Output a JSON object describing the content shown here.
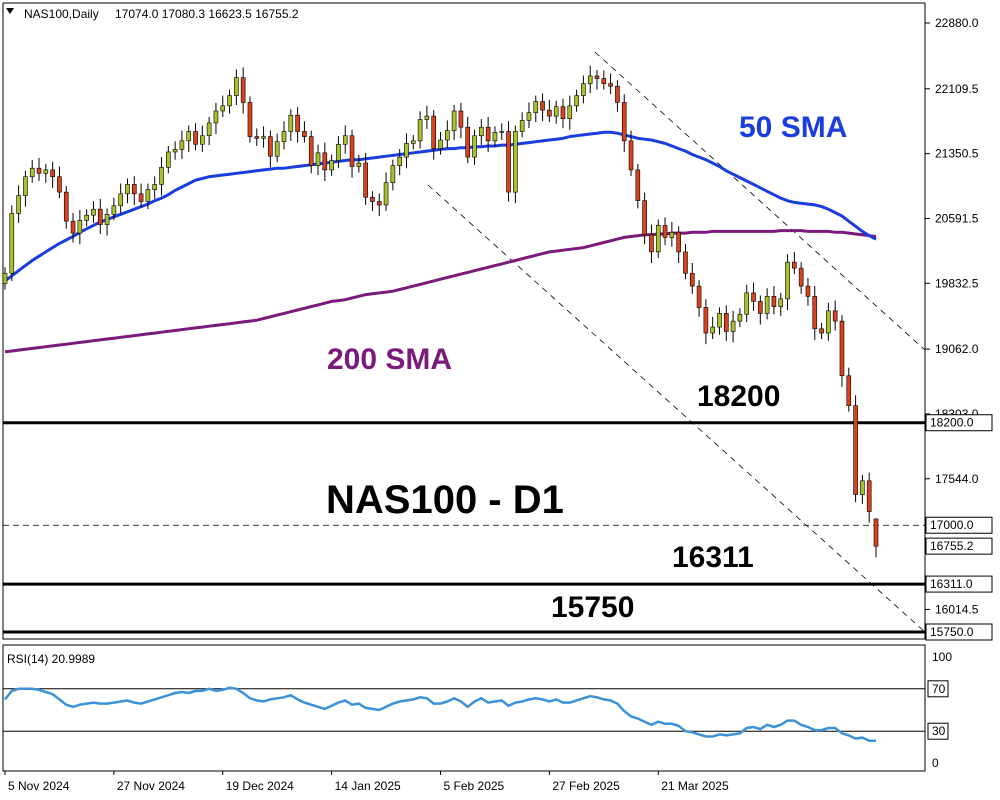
{
  "header": {
    "symbol_timeframe": "NAS100,Daily",
    "ohlc": "17074.0 17080.3 16623.5 16755.2"
  },
  "rsi_header": {
    "label": "RSI(14) 20.9989"
  },
  "annotations": {
    "title": "NAS100 - D1",
    "sma50_label": "50 SMA",
    "sma200_label": "200 SMA",
    "lvl_18200": "18200",
    "lvl_16311": "16311",
    "lvl_15750": "15750"
  },
  "colors": {
    "bull": "#a8c22a",
    "bear": "#d8421c",
    "sma50": "#1a3de0",
    "sma200": "#7a1a7a",
    "rsi": "#3c92d8"
  },
  "chart_data": [
    {
      "type": "candlestick",
      "title": "NAS100,Daily",
      "y_ticks": [
        "22880.0",
        "22109.5",
        "21350.5",
        "20591.5",
        "19832.5",
        "19062.0",
        "18303.0",
        "17544.0",
        "16014.5"
      ],
      "price_tags": [
        "18200.0",
        "17000.0",
        "16755.2",
        "16311.0",
        "15750.0"
      ],
      "x_ticks": [
        "5 Nov 2024",
        "27 Nov 2024",
        "19 Dec 2024",
        "14 Jan 2025",
        "5 Feb 2025",
        "27 Feb 2025",
        "21 Mar 2025"
      ],
      "ylim": [
        15670,
        23000
      ],
      "last_bar": {
        "open": 17074.0,
        "high": 17080.3,
        "low": 16623.5,
        "close": 16755.2
      },
      "horizontal_levels": [
        18200,
        16311,
        15750
      ],
      "dashed_level": 17000,
      "closes": [
        19950,
        20650,
        20860,
        21080,
        21180,
        21120,
        21160,
        21080,
        20900,
        20560,
        20420,
        20570,
        20630,
        20700,
        20520,
        20640,
        20740,
        20880,
        20990,
        20880,
        20790,
        20930,
        20990,
        21190,
        21370,
        21400,
        21500,
        21610,
        21460,
        21560,
        21710,
        21850,
        21910,
        22030,
        22240,
        21950,
        21550,
        21530,
        21550,
        21320,
        21490,
        21610,
        21800,
        21610,
        21550,
        21210,
        21360,
        21160,
        21270,
        21460,
        21560,
        21200,
        21240,
        20840,
        20790,
        20750,
        21010,
        21210,
        21310,
        21470,
        21500,
        21750,
        21790,
        21410,
        21510,
        21620,
        21850,
        21660,
        21310,
        21560,
        21660,
        21500,
        21600,
        21610,
        20900,
        21610,
        21740,
        21830,
        21960,
        21860,
        21790,
        21900,
        21760,
        21910,
        22030,
        22170,
        22260,
        22230,
        22170,
        22140,
        21950,
        21500,
        21160,
        20800,
        20400,
        20200,
        20510,
        20370,
        20430,
        20200,
        19950,
        19800,
        19550,
        19250,
        19320,
        19480,
        19270,
        19390,
        19470,
        19720,
        19620,
        19480,
        19680,
        19560,
        19650,
        20080,
        20010,
        19800,
        19680,
        19300,
        19250,
        19510,
        19390,
        18750,
        18400,
        17360,
        17520,
        17160,
        16755
      ],
      "sma50": [
        19860,
        19920,
        19980,
        20040,
        20100,
        20150,
        20200,
        20250,
        20300,
        20340,
        20380,
        20430,
        20470,
        20510,
        20550,
        20580,
        20610,
        20640,
        20670,
        20700,
        20730,
        20760,
        20800,
        20830,
        20870,
        20920,
        20960,
        21000,
        21040,
        21060,
        21080,
        21090,
        21100,
        21110,
        21120,
        21130,
        21140,
        21150,
        21160,
        21170,
        21180,
        21180,
        21190,
        21200,
        21210,
        21220,
        21230,
        21240,
        21250,
        21260,
        21270,
        21280,
        21280,
        21290,
        21300,
        21310,
        21320,
        21330,
        21340,
        21350,
        21360,
        21370,
        21380,
        21390,
        21400,
        21410,
        21410,
        21420,
        21420,
        21430,
        21430,
        21440,
        21440,
        21450,
        21450,
        21460,
        21470,
        21480,
        21490,
        21500,
        21510,
        21520,
        21530,
        21550,
        21560,
        21570,
        21580,
        21590,
        21600,
        21600,
        21590,
        21570,
        21550,
        21530,
        21520,
        21510,
        21490,
        21470,
        21440,
        21410,
        21380,
        21340,
        21310,
        21280,
        21240,
        21200,
        21150,
        21110,
        21070,
        21030,
        20990,
        20950,
        20910,
        20870,
        20830,
        20800,
        20780,
        20770,
        20760,
        20750,
        20730,
        20700,
        20660,
        20620,
        20560,
        20500,
        20440,
        20390,
        20350
      ],
      "sma200": [
        19030,
        19040,
        19050,
        19060,
        19070,
        19080,
        19090,
        19100,
        19110,
        19120,
        19130,
        19140,
        19150,
        19160,
        19170,
        19180,
        19190,
        19200,
        19210,
        19220,
        19230,
        19240,
        19250,
        19260,
        19270,
        19280,
        19290,
        19300,
        19310,
        19320,
        19330,
        19340,
        19350,
        19360,
        19370,
        19380,
        19390,
        19400,
        19420,
        19440,
        19460,
        19480,
        19500,
        19520,
        19540,
        19560,
        19580,
        19600,
        19620,
        19630,
        19640,
        19660,
        19680,
        19700,
        19710,
        19720,
        19730,
        19740,
        19760,
        19780,
        19800,
        19820,
        19840,
        19860,
        19880,
        19900,
        19920,
        19940,
        19960,
        19980,
        20000,
        20020,
        20040,
        20060,
        20080,
        20100,
        20120,
        20140,
        20160,
        20180,
        20200,
        20210,
        20220,
        20230,
        20240,
        20250,
        20270,
        20290,
        20310,
        20330,
        20350,
        20370,
        20380,
        20390,
        20400,
        20400,
        20410,
        20410,
        20420,
        20420,
        20420,
        20430,
        20430,
        20430,
        20440,
        20440,
        20440,
        20440,
        20440,
        20440,
        20440,
        20440,
        20440,
        20440,
        20450,
        20450,
        20450,
        20450,
        20440,
        20440,
        20440,
        20440,
        20430,
        20430,
        20420,
        20410,
        20400,
        20390,
        20380
      ]
    },
    {
      "type": "line",
      "title": "RSI(14) 20.9989",
      "y_ticks": [
        "100",
        "70",
        "30",
        "0"
      ],
      "levels": [
        70,
        30
      ],
      "ylim": [
        0,
        100
      ],
      "values": [
        60,
        68,
        70,
        70,
        70,
        69,
        67,
        65,
        60,
        55,
        53,
        55,
        56,
        57,
        56,
        56,
        57,
        58,
        59,
        57,
        56,
        58,
        60,
        62,
        64,
        66,
        67,
        66,
        68,
        68,
        70,
        68,
        69,
        71,
        70,
        66,
        61,
        59,
        58,
        60,
        61,
        62,
        64,
        60,
        57,
        55,
        53,
        51,
        54,
        57,
        59,
        55,
        56,
        52,
        51,
        50,
        53,
        56,
        58,
        59,
        60,
        62,
        61,
        56,
        56,
        58,
        61,
        58,
        53,
        58,
        61,
        57,
        58,
        59,
        54,
        57,
        58,
        60,
        61,
        60,
        58,
        60,
        57,
        57,
        59,
        61,
        63,
        62,
        60,
        59,
        56,
        49,
        44,
        42,
        39,
        36,
        39,
        37,
        37,
        35,
        30,
        29,
        27,
        25,
        25,
        27,
        26,
        27,
        28,
        33,
        34,
        32,
        36,
        34,
        36,
        40,
        40,
        36,
        34,
        31,
        31,
        33,
        33,
        28,
        26,
        23,
        24,
        21,
        21
      ]
    }
  ]
}
